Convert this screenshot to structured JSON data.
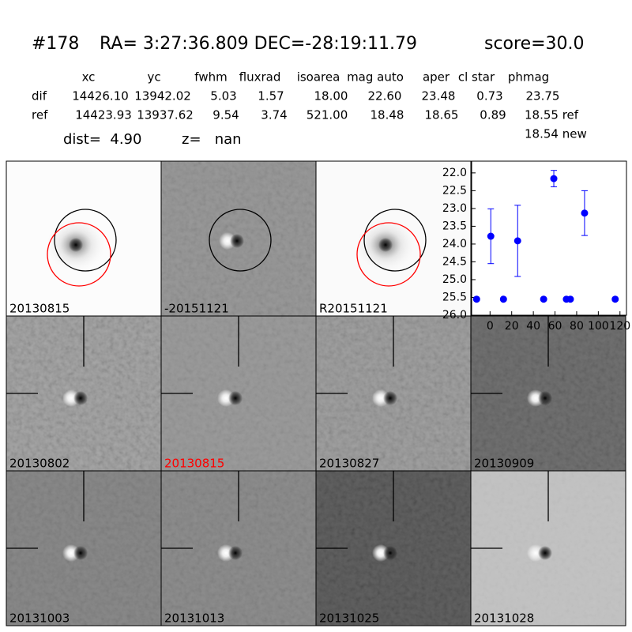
{
  "header": {
    "title": [
      "#178",
      "RA= 3:27:36.809 DEC=-28:19:11.79",
      "score=30.0"
    ],
    "columns": [
      "xc",
      "yc",
      "fwhm",
      "fluxrad",
      "isoarea",
      "mag auto",
      "aper",
      "cl star",
      "phmag"
    ],
    "rows": [
      {
        "label": "dif",
        "values": [
          "14426.10",
          "13942.02",
          "5.03",
          "1.57",
          "18.00",
          "22.60",
          "23.48",
          "0.73",
          "23.75"
        ]
      },
      {
        "label": "ref",
        "values": [
          "14423.93",
          "13937.62",
          "9.54",
          "3.74",
          "521.00",
          "18.48",
          "18.65",
          "0.89",
          "18.55 ref"
        ]
      }
    ],
    "extra": "18.54 new",
    "dist": "dist=  4.90",
    "z": "z=   nan"
  },
  "panels": [
    {
      "label": "20130815"
    },
    {
      "label": "-20151121"
    },
    {
      "label": "R20151121"
    },
    {
      "label": "20130802"
    },
    {
      "label": "20130815",
      "label_color": "#ff0000"
    },
    {
      "label": "20130827"
    },
    {
      "label": "20130909"
    },
    {
      "label": "20131003"
    },
    {
      "label": "20131013"
    },
    {
      "label": "20131025"
    },
    {
      "label": "20131028"
    }
  ],
  "chart_data": {
    "type": "scatter",
    "x": [
      -12.4,
      0.7,
      12.4,
      25.5,
      49.5,
      58.9,
      70.5,
      74.2,
      87.3,
      115.6
    ],
    "series": [
      {
        "color": "#0000ff",
        "values": [
          25.55,
          23.78,
          25.55,
          23.91,
          25.55,
          22.16,
          25.55,
          25.55,
          23.13,
          25.55
        ],
        "errors": [
          0,
          0.77,
          0,
          1.0,
          0,
          0.23,
          0,
          0,
          0.63,
          0
        ]
      }
    ],
    "xlim": [
      -17,
      126
    ],
    "xticks": [
      0,
      20,
      40,
      60,
      80,
      100,
      120
    ],
    "ylim": [
      26.0,
      21.67
    ],
    "yticks": [
      {
        "value": 22,
        "label": "22.0"
      },
      22.5,
      {
        "value": 23,
        "label": "23.0"
      },
      23.5,
      {
        "value": 24,
        "label": "24.0"
      },
      24.5,
      {
        "value": 25,
        "label": "25.0"
      },
      25.5,
      {
        "value": 26,
        "label": "26.0"
      }
    ]
  }
}
